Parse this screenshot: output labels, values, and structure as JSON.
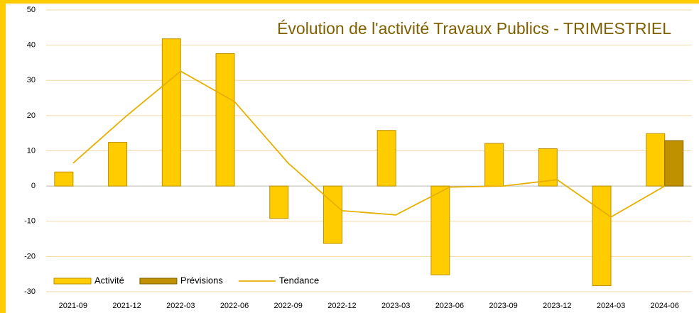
{
  "chart_data": {
    "type": "bar",
    "title": "Évolution de l'activité Travaux Publics - TRIMESTRIEL",
    "categories": [
      "2021-09",
      "2021-12",
      "2022-03",
      "2022-06",
      "2022-09",
      "2022-12",
      "2023-03",
      "2023-06",
      "2023-09",
      "2023-12",
      "2024-03",
      "2024-06"
    ],
    "series": [
      {
        "name": "Activité",
        "type": "bar",
        "color": "#ffcc00",
        "values": [
          4,
          12.4,
          41.8,
          37.6,
          -9.2,
          -16.3,
          15.8,
          -25.2,
          12.1,
          10.6,
          -28.3,
          14.9
        ]
      },
      {
        "name": "Prévisions",
        "type": "bar",
        "color": "#bf9000",
        "values": [
          null,
          null,
          null,
          null,
          null,
          null,
          null,
          null,
          null,
          null,
          null,
          12.9
        ]
      },
      {
        "name": "Tendance",
        "type": "line",
        "color": "#e6b000",
        "values": [
          6.5,
          20,
          32.6,
          24,
          6.5,
          -7,
          -8.2,
          -0.3,
          0,
          1.8,
          -8.8,
          0
        ]
      }
    ],
    "ylim": [
      -30,
      50
    ],
    "yticks": [
      -30,
      -20,
      -10,
      0,
      10,
      20,
      30,
      40,
      50
    ],
    "grid": true,
    "legend": "bottom-left"
  }
}
